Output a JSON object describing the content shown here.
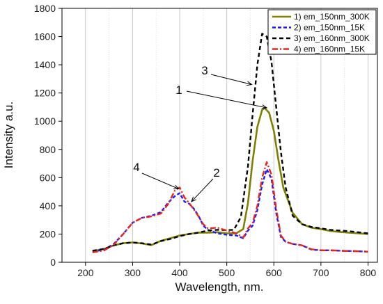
{
  "chart_data": {
    "type": "line",
    "xlabel": "Wavelength, nm.",
    "ylabel": "Intensity a.u.",
    "xlim": [
      150,
      820
    ],
    "ylim": [
      0,
      1800
    ],
    "xticks": [
      200,
      300,
      400,
      500,
      600,
      700,
      800
    ],
    "yticks": [
      0,
      200,
      400,
      600,
      800,
      1000,
      1200,
      1400,
      1600,
      1800
    ],
    "grid": "vertical",
    "legend_position": "top-right",
    "series": [
      {
        "name": "1) em_150nm_300K",
        "color": "#808000",
        "dash": "solid",
        "x": [
          215,
          240,
          260,
          280,
          300,
          320,
          340,
          360,
          380,
          400,
          420,
          440,
          460,
          480,
          500,
          520,
          535,
          545,
          555,
          565,
          575,
          580,
          590,
          600,
          610,
          620,
          640,
          660,
          680,
          700,
          720,
          740,
          760,
          780,
          800
        ],
        "y": [
          78,
          95,
          120,
          135,
          140,
          133,
          122,
          152,
          170,
          190,
          200,
          210,
          210,
          213,
          205,
          205,
          235,
          420,
          720,
          960,
          1080,
          1095,
          1060,
          930,
          720,
          530,
          350,
          270,
          245,
          235,
          222,
          215,
          210,
          205,
          200
        ]
      },
      {
        "name": "2) em_150nm_15K",
        "color": "#1a1aff",
        "dash": "5,3",
        "x": [
          215,
          240,
          260,
          280,
          300,
          320,
          340,
          360,
          375,
          390,
          400,
          410,
          420,
          430,
          440,
          450,
          460,
          480,
          500,
          520,
          535,
          545,
          555,
          565,
          575,
          585,
          595,
          605,
          615,
          625,
          640,
          660,
          680,
          700,
          720,
          740,
          760,
          780,
          800
        ],
        "y": [
          75,
          90,
          130,
          200,
          280,
          315,
          330,
          355,
          420,
          470,
          490,
          430,
          415,
          380,
          330,
          260,
          230,
          205,
          195,
          190,
          170,
          225,
          260,
          370,
          550,
          660,
          590,
          350,
          180,
          145,
          130,
          120,
          90,
          85,
          85,
          82,
          80,
          78,
          75
        ]
      },
      {
        "name": "3) em_160nm_300K",
        "color": "#000000",
        "dash": "6,4",
        "x": [
          215,
          240,
          260,
          280,
          300,
          320,
          340,
          360,
          380,
          400,
          420,
          440,
          460,
          480,
          500,
          515,
          530,
          545,
          555,
          565,
          575,
          585,
          595,
          605,
          615,
          625,
          640,
          660,
          680,
          700,
          720,
          740,
          760,
          780,
          800
        ],
        "y": [
          82,
          95,
          120,
          135,
          140,
          135,
          125,
          150,
          165,
          185,
          200,
          210,
          225,
          230,
          228,
          230,
          320,
          680,
          1050,
          1400,
          1620,
          1600,
          1420,
          1100,
          780,
          530,
          330,
          270,
          250,
          240,
          230,
          225,
          220,
          212,
          205
        ]
      },
      {
        "name": "4) em_160nm_15K",
        "color": "#e3261f",
        "dash": "8,3,2,3",
        "x": [
          215,
          240,
          260,
          280,
          300,
          320,
          340,
          360,
          375,
          390,
          400,
          410,
          420,
          430,
          440,
          450,
          460,
          480,
          500,
          520,
          535,
          545,
          555,
          565,
          575,
          585,
          595,
          605,
          615,
          625,
          640,
          660,
          680,
          700,
          720,
          740,
          760,
          780,
          800
        ],
        "y": [
          70,
          85,
          125,
          200,
          280,
          315,
          325,
          345,
          410,
          510,
          530,
          460,
          420,
          375,
          325,
          270,
          240,
          245,
          225,
          205,
          175,
          240,
          280,
          400,
          600,
          710,
          620,
          380,
          190,
          145,
          130,
          120,
          92,
          85,
          85,
          82,
          80,
          78,
          75
        ]
      }
    ],
    "annotations": [
      {
        "label": "1",
        "x": 585,
        "y": 1095
      },
      {
        "label": "2",
        "x": 425,
        "y": 430
      },
      {
        "label": "3",
        "x": 553,
        "y": 1260
      },
      {
        "label": "4",
        "x": 398,
        "y": 520
      }
    ]
  }
}
